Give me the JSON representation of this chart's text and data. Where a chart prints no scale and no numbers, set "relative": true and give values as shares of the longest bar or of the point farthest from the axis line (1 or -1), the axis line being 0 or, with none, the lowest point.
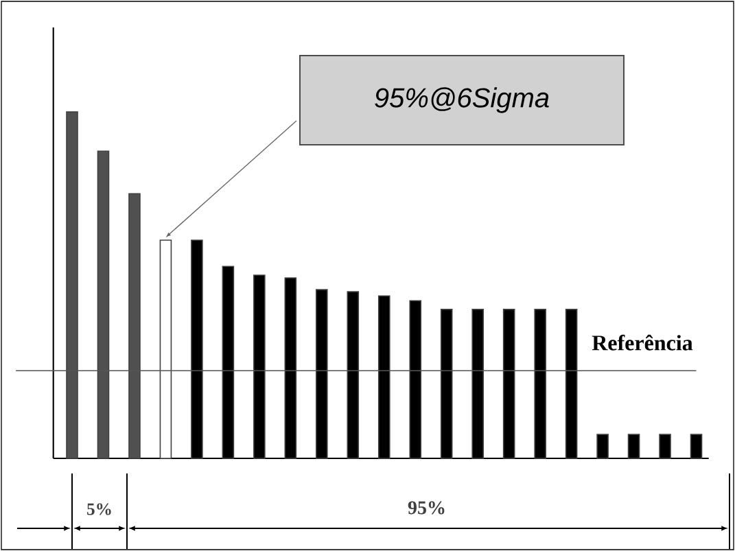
{
  "chart_data": {
    "type": "bar",
    "relative": true,
    "categories": [
      null,
      null,
      null,
      null,
      null,
      null,
      null,
      null,
      null,
      null,
      null,
      null,
      null,
      null,
      null,
      null,
      null,
      null,
      null,
      null,
      null
    ],
    "values": [
      1.0,
      0.887,
      0.764,
      0.63,
      0.63,
      0.554,
      0.529,
      0.521,
      0.487,
      0.481,
      0.469,
      0.455,
      0.43,
      0.43,
      0.43,
      0.43,
      0.43,
      0.069,
      0.069,
      0.069,
      0.069
    ],
    "colors": [
      "#505050",
      "#505050",
      "#505050",
      "#ffffff",
      "#000000",
      "#000000",
      "#000000",
      "#000000",
      "#000000",
      "#000000",
      "#000000",
      "#000000",
      "#000000",
      "#000000",
      "#000000",
      "#000000",
      "#000000",
      "#000000",
      "#000000",
      "#000000",
      "#000000"
    ],
    "ref_lines": [
      {
        "axis": "y",
        "value": 0.253,
        "label": "Referência",
        "color": "#555555"
      }
    ],
    "annotations": [
      "95%@6Sigma",
      "5%",
      "95%"
    ]
  }
}
